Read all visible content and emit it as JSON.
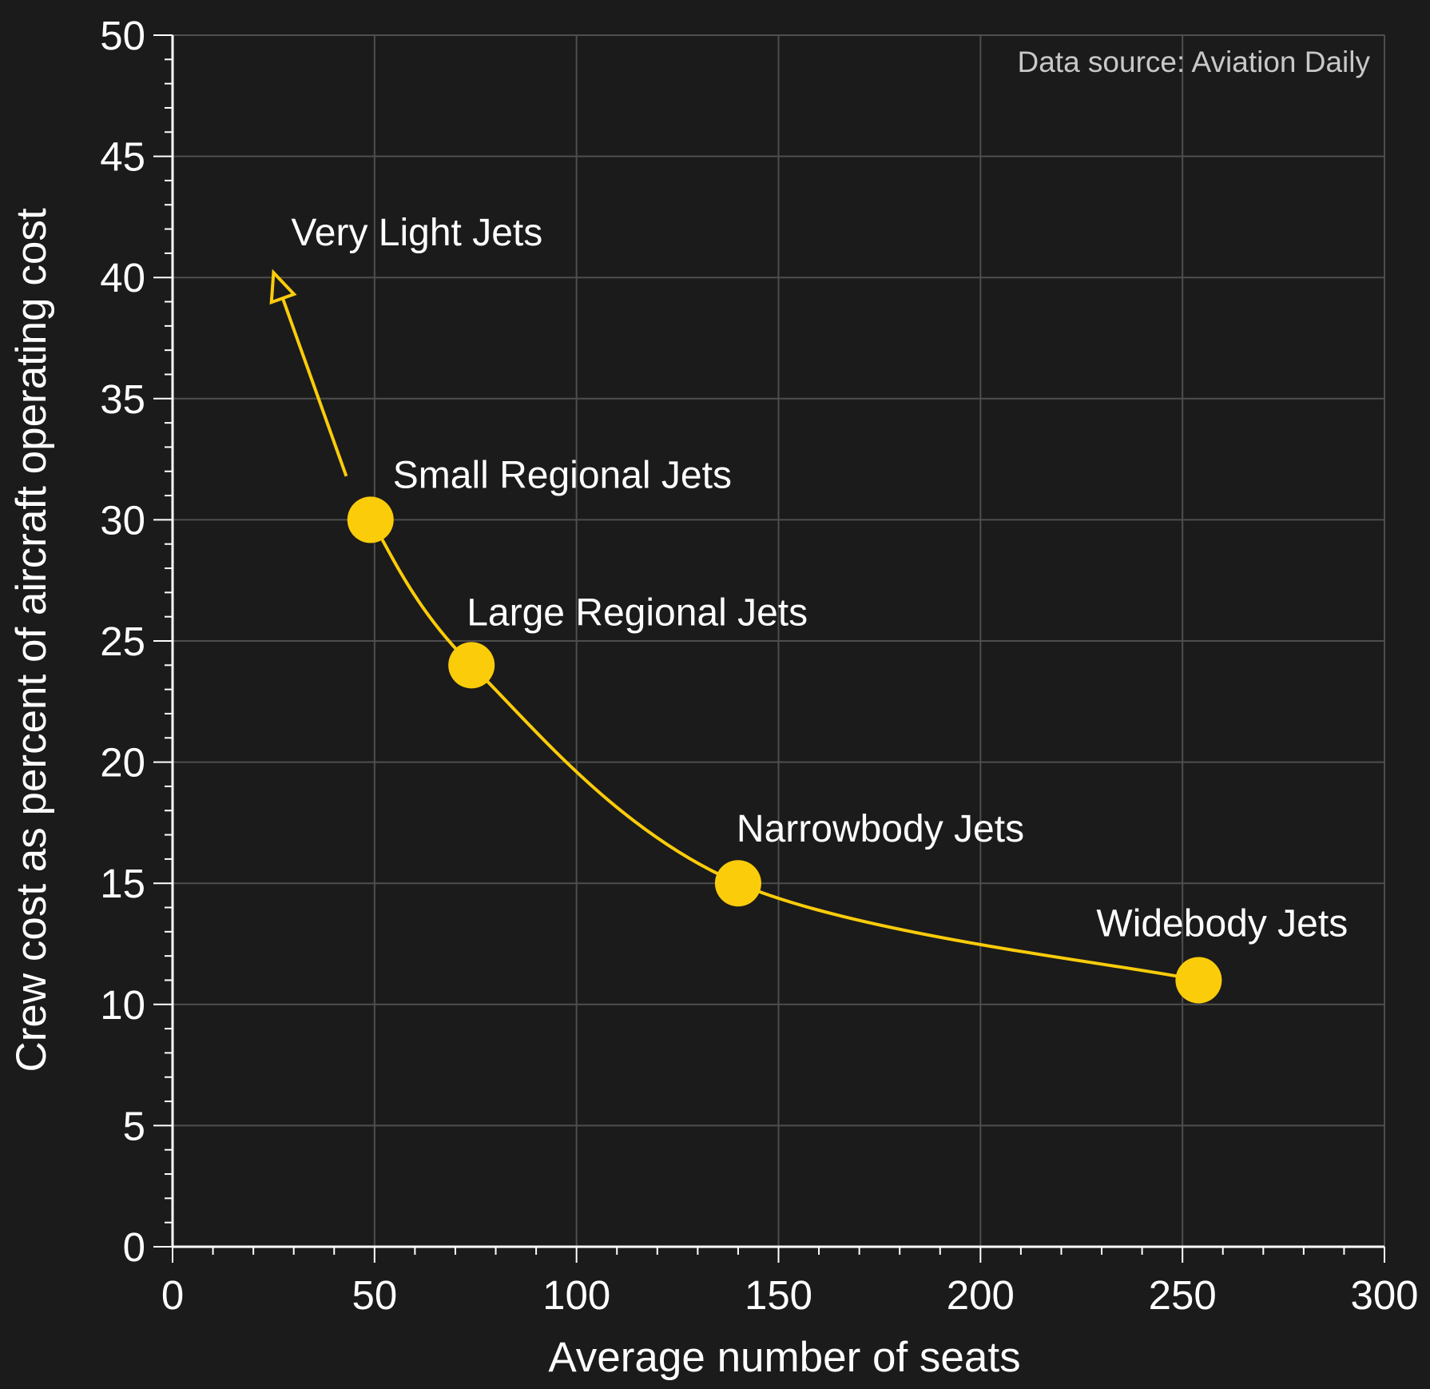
{
  "chart_data": {
    "type": "scatter",
    "title": "",
    "xlabel": "Average number of seats",
    "ylabel": "Crew cost as percent of aircraft operating cost",
    "xlim": [
      0,
      300
    ],
    "ylim": [
      0,
      50
    ],
    "xticks": [
      0,
      50,
      100,
      150,
      200,
      250,
      300
    ],
    "yticks": [
      0,
      5,
      10,
      15,
      20,
      25,
      30,
      35,
      40,
      45,
      50
    ],
    "grid": true,
    "annotation": "Data source: Aviation Daily",
    "colors": {
      "background": "#1b1b1b",
      "series": "#fbcc0a",
      "grid": "#4e4e4e",
      "axis": "#ffffff"
    },
    "series": [
      {
        "points": [
          {
            "label": "Small Regional Jets",
            "x": 49,
            "y": 30
          },
          {
            "label": "Large Regional Jets",
            "x": 74,
            "y": 24
          },
          {
            "label": "Narrowbody Jets",
            "x": 140,
            "y": 15
          },
          {
            "label": "Widebody Jets",
            "x": 254,
            "y": 11
          }
        ]
      }
    ],
    "arrow": {
      "label": "Very Light Jets",
      "from": {
        "x": 43,
        "y": 31.8
      },
      "to": {
        "x": 25,
        "y": 40.2
      }
    }
  }
}
